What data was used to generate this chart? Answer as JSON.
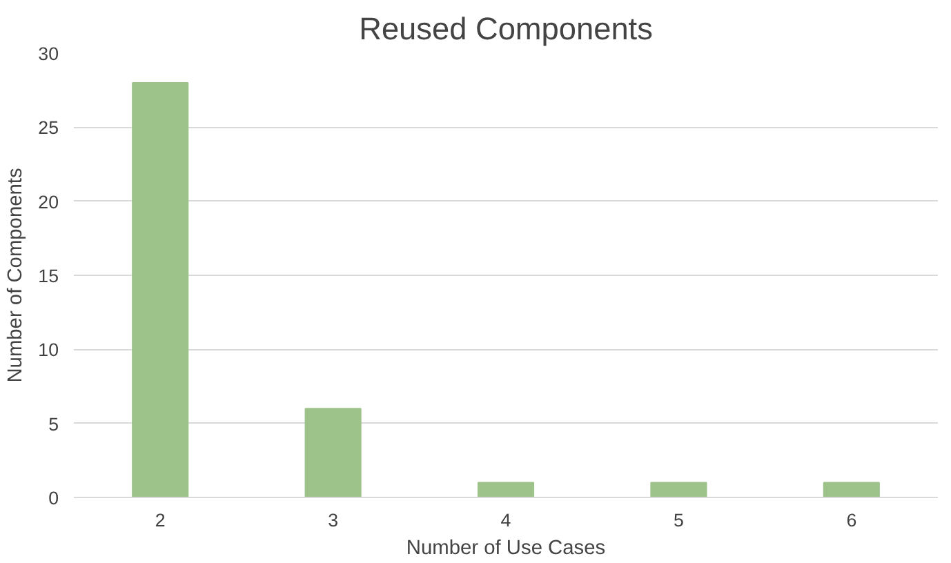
{
  "chart_data": {
    "type": "bar",
    "title": "Reused Components",
    "xlabel": "Number of Use Cases",
    "ylabel": "Number of Components",
    "categories": [
      "2",
      "3",
      "4",
      "5",
      "6"
    ],
    "values": [
      28,
      6,
      1,
      1,
      1
    ],
    "color": "#9dc38a",
    "ylim": [
      0,
      30
    ],
    "yticks": [
      0,
      5,
      10,
      15,
      20,
      25,
      30
    ],
    "grid": "y"
  }
}
